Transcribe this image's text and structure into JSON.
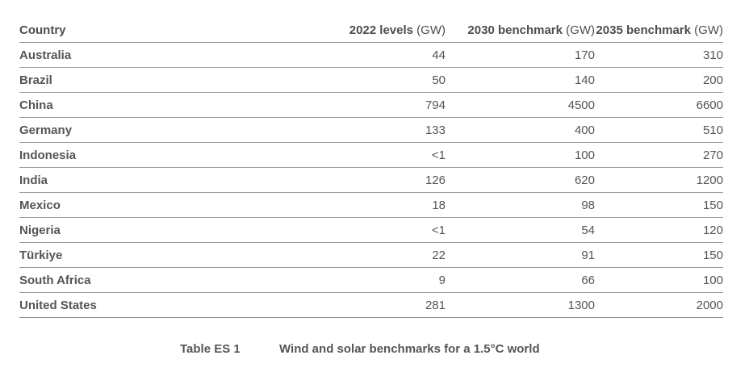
{
  "table": {
    "headers": {
      "country": "Country",
      "col1_bold": "2022 levels",
      "col1_unit": "(GW)",
      "col2_bold": "2030 benchmark",
      "col2_unit": "(GW)",
      "col3_bold": "2035 benchmark",
      "col3_unit": "(GW)"
    },
    "rows": [
      {
        "country": "Australia",
        "v2022": "44",
        "v2030": "170",
        "v2035": "310"
      },
      {
        "country": "Brazil",
        "v2022": "50",
        "v2030": "140",
        "v2035": "200"
      },
      {
        "country": "China",
        "v2022": "794",
        "v2030": "4500",
        "v2035": "6600"
      },
      {
        "country": "Germany",
        "v2022": "133",
        "v2030": "400",
        "v2035": "510"
      },
      {
        "country": "Indonesia",
        "v2022": "<1",
        "v2030": "100",
        "v2035": "270"
      },
      {
        "country": "India",
        "v2022": "126",
        "v2030": "620",
        "v2035": "1200"
      },
      {
        "country": "Mexico",
        "v2022": "18",
        "v2030": "98",
        "v2035": "150"
      },
      {
        "country": "Nigeria",
        "v2022": "<1",
        "v2030": "54",
        "v2035": "120"
      },
      {
        "country": "Türkiye",
        "v2022": "22",
        "v2030": "91",
        "v2035": "150"
      },
      {
        "country": "South Africa",
        "v2022": "9",
        "v2030": "66",
        "v2035": "100"
      },
      {
        "country": "United States",
        "v2022": "281",
        "v2030": "1300",
        "v2035": "2000"
      }
    ]
  },
  "caption": {
    "label": "Table ES 1",
    "text": "Wind and solar benchmarks for a 1.5°C world"
  }
}
